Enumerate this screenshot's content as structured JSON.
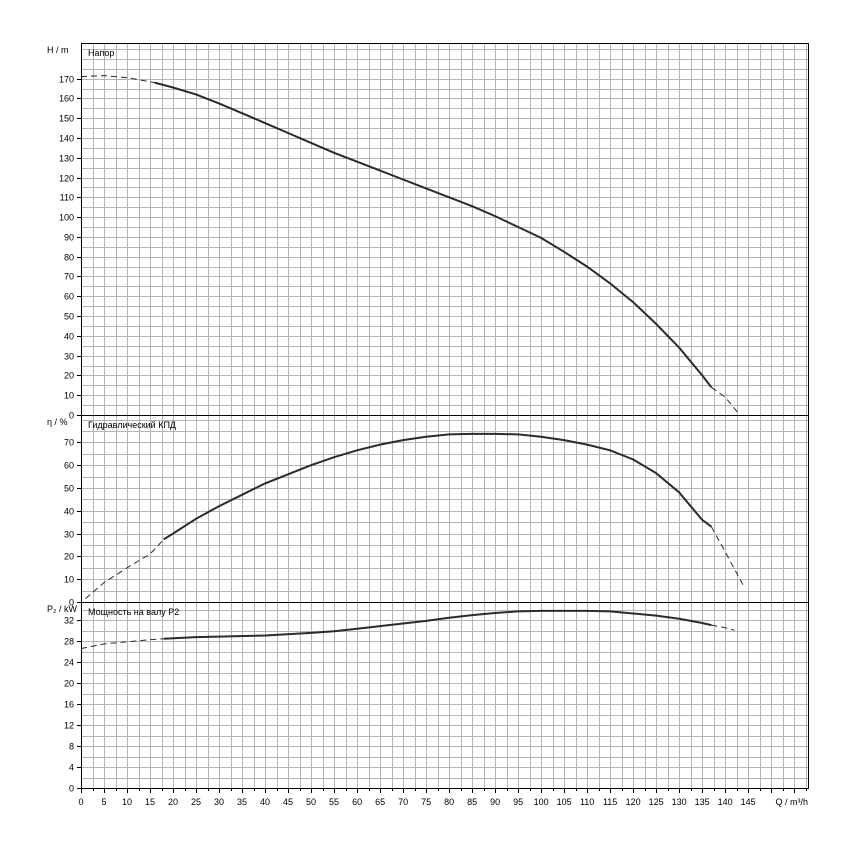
{
  "chart_data": {
    "x_axis": {
      "label": "Q / m³/h",
      "min": 0,
      "max": 158,
      "ticks": [
        0,
        5,
        10,
        15,
        20,
        25,
        30,
        35,
        40,
        45,
        50,
        55,
        60,
        65,
        70,
        75,
        80,
        85,
        90,
        95,
        100,
        105,
        110,
        115,
        120,
        125,
        130,
        135,
        140,
        145
      ]
    },
    "panels": [
      {
        "type": "line",
        "title": "Напор",
        "ylabel": "H / m",
        "ylim": [
          0,
          188
        ],
        "yticks": [
          0,
          10,
          20,
          30,
          40,
          50,
          60,
          70,
          80,
          90,
          100,
          110,
          120,
          130,
          140,
          150,
          160,
          170
        ],
        "dashed_start": [
          [
            0,
            171
          ],
          [
            5,
            171.5
          ],
          [
            10,
            170.5
          ],
          [
            16,
            168
          ]
        ],
        "solid": [
          [
            16,
            168
          ],
          [
            20,
            165.5
          ],
          [
            25,
            162
          ],
          [
            30,
            157.5
          ],
          [
            35,
            152.5
          ],
          [
            40,
            147.5
          ],
          [
            45,
            142.5
          ],
          [
            50,
            137.5
          ],
          [
            55,
            132.5
          ],
          [
            60,
            128
          ],
          [
            65,
            123.5
          ],
          [
            70,
            119
          ],
          [
            75,
            114.5
          ],
          [
            80,
            110
          ],
          [
            85,
            105.5
          ],
          [
            90,
            100.5
          ],
          [
            95,
            95
          ],
          [
            100,
            89.5
          ],
          [
            105,
            82.5
          ],
          [
            110,
            75
          ],
          [
            115,
            66.5
          ],
          [
            120,
            57
          ],
          [
            125,
            46
          ],
          [
            130,
            34
          ],
          [
            135,
            20
          ],
          [
            137,
            14
          ]
        ],
        "dashed_end": [
          [
            137,
            14
          ],
          [
            140,
            9
          ],
          [
            143,
            0.5
          ]
        ]
      },
      {
        "type": "line",
        "title": "Гидравлический КПД",
        "ylabel": "η / %",
        "ylim": [
          0,
          82
        ],
        "yticks": [
          0,
          10,
          20,
          30,
          40,
          50,
          60,
          70
        ],
        "dashed_start": [
          [
            1,
            1.5
          ],
          [
            5,
            8.5
          ],
          [
            10,
            15
          ],
          [
            15,
            21
          ],
          [
            18,
            27.5
          ]
        ],
        "solid": [
          [
            18,
            27.5
          ],
          [
            20,
            30
          ],
          [
            25,
            36.5
          ],
          [
            30,
            42
          ],
          [
            35,
            47
          ],
          [
            40,
            52
          ],
          [
            45,
            56
          ],
          [
            50,
            60
          ],
          [
            55,
            63.5
          ],
          [
            60,
            66.5
          ],
          [
            65,
            69
          ],
          [
            70,
            71
          ],
          [
            75,
            72.5
          ],
          [
            80,
            73.5
          ],
          [
            85,
            73.7
          ],
          [
            90,
            73.7
          ],
          [
            95,
            73.5
          ],
          [
            100,
            72.5
          ],
          [
            105,
            71
          ],
          [
            110,
            69
          ],
          [
            115,
            66.5
          ],
          [
            120,
            62.5
          ],
          [
            125,
            56.5
          ],
          [
            130,
            48
          ],
          [
            135,
            36
          ],
          [
            137,
            33
          ]
        ],
        "dashed_end": [
          [
            137,
            33
          ],
          [
            140,
            22
          ],
          [
            144,
            7
          ]
        ]
      },
      {
        "type": "line",
        "title": "Мощность на валу P2",
        "ylabel": "P₂ / kW",
        "ylim": [
          0,
          35.5
        ],
        "yticks": [
          0,
          4,
          8,
          12,
          16,
          20,
          24,
          28,
          32
        ],
        "dashed_start": [
          [
            0,
            26.6
          ],
          [
            5,
            27.5
          ],
          [
            10,
            27.9
          ],
          [
            15,
            28.3
          ],
          [
            18,
            28.5
          ]
        ],
        "solid": [
          [
            18,
            28.5
          ],
          [
            25,
            28.8
          ],
          [
            30,
            28.9
          ],
          [
            40,
            29.1
          ],
          [
            50,
            29.6
          ],
          [
            55,
            29.9
          ],
          [
            60,
            30.4
          ],
          [
            65,
            30.9
          ],
          [
            70,
            31.4
          ],
          [
            75,
            31.9
          ],
          [
            80,
            32.5
          ],
          [
            85,
            33
          ],
          [
            90,
            33.4
          ],
          [
            95,
            33.7
          ],
          [
            100,
            33.8
          ],
          [
            105,
            33.8
          ],
          [
            110,
            33.8
          ],
          [
            115,
            33.7
          ],
          [
            120,
            33.3
          ],
          [
            125,
            32.9
          ],
          [
            130,
            32.3
          ],
          [
            135,
            31.5
          ],
          [
            137,
            31.1
          ]
        ],
        "dashed_end": [
          [
            137,
            31.1
          ],
          [
            140,
            30.6
          ],
          [
            142,
            30.1
          ]
        ]
      }
    ]
  }
}
